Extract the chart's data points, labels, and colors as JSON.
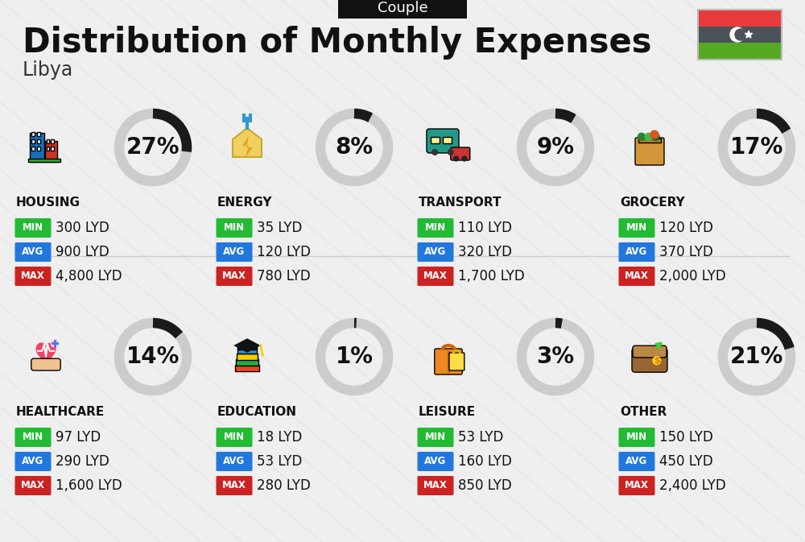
{
  "title": "Distribution of Monthly Expenses",
  "subtitle": "Libya",
  "tab_label": "Couple",
  "background_color": "#efefef",
  "categories": [
    {
      "name": "HOUSING",
      "pct": 27,
      "min_val": "300 LYD",
      "avg_val": "900 LYD",
      "max_val": "4,800 LYD",
      "row": 0,
      "col": 0
    },
    {
      "name": "ENERGY",
      "pct": 8,
      "min_val": "35 LYD",
      "avg_val": "120 LYD",
      "max_val": "780 LYD",
      "row": 0,
      "col": 1
    },
    {
      "name": "TRANSPORT",
      "pct": 9,
      "min_val": "110 LYD",
      "avg_val": "320 LYD",
      "max_val": "1,700 LYD",
      "row": 0,
      "col": 2
    },
    {
      "name": "GROCERY",
      "pct": 17,
      "min_val": "120 LYD",
      "avg_val": "370 LYD",
      "max_val": "2,000 LYD",
      "row": 0,
      "col": 3
    },
    {
      "name": "HEALTHCARE",
      "pct": 14,
      "min_val": "97 LYD",
      "avg_val": "290 LYD",
      "max_val": "1,600 LYD",
      "row": 1,
      "col": 0
    },
    {
      "name": "EDUCATION",
      "pct": 1,
      "min_val": "18 LYD",
      "avg_val": "53 LYD",
      "max_val": "280 LYD",
      "row": 1,
      "col": 1
    },
    {
      "name": "LEISURE",
      "pct": 3,
      "min_val": "53 LYD",
      "avg_val": "160 LYD",
      "max_val": "850 LYD",
      "row": 1,
      "col": 2
    },
    {
      "name": "OTHER",
      "pct": 21,
      "min_val": "150 LYD",
      "avg_val": "450 LYD",
      "max_val": "2,400 LYD",
      "row": 1,
      "col": 3
    }
  ],
  "min_color": "#22bb33",
  "avg_color": "#2277dd",
  "max_color": "#cc2222",
  "arc_color": "#1a1a1a",
  "arc_bg_color": "#cccccc",
  "flag_red": "#e83a3a",
  "flag_gray": "#4a525a",
  "flag_green": "#55aa22",
  "title_fontsize": 30,
  "subtitle_fontsize": 17,
  "tab_fontsize": 13,
  "cat_fontsize": 11,
  "val_fontsize": 12,
  "pct_fontsize": 20
}
